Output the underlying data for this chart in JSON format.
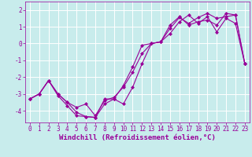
{
  "background_color": "#c8ecec",
  "grid_color": "#ffffff",
  "line_color": "#990099",
  "marker": "D",
  "markersize": 2.0,
  "linewidth": 0.8,
  "xlabel": "Windchill (Refroidissement éolien,°C)",
  "xlabel_fontsize": 6.5,
  "tick_fontsize": 5.5,
  "xlim": [
    -0.5,
    23.5
  ],
  "ylim": [
    -4.7,
    2.5
  ],
  "yticks": [
    -4,
    -3,
    -2,
    -1,
    0,
    1,
    2
  ],
  "xticks": [
    0,
    1,
    2,
    3,
    4,
    5,
    6,
    7,
    8,
    9,
    10,
    11,
    12,
    13,
    14,
    15,
    16,
    17,
    18,
    19,
    20,
    21,
    22,
    23
  ],
  "series1_x": [
    0,
    1,
    2,
    3,
    4,
    5,
    6,
    7,
    8,
    9,
    10,
    11,
    12,
    13,
    14,
    15,
    16,
    17,
    18,
    19,
    20,
    21,
    22,
    23
  ],
  "series1_y": [
    -3.3,
    -3.0,
    -2.2,
    -3.0,
    -3.5,
    -4.1,
    -4.35,
    -4.4,
    -3.3,
    -3.3,
    -3.6,
    -2.6,
    -1.2,
    0.0,
    0.1,
    0.6,
    1.3,
    1.7,
    1.2,
    1.6,
    0.7,
    1.5,
    1.2,
    -1.2
  ],
  "series2_x": [
    0,
    1,
    2,
    3,
    4,
    5,
    6,
    7,
    8,
    9,
    10,
    11,
    12,
    13,
    14,
    15,
    16,
    17,
    18,
    19,
    20,
    21,
    22,
    23
  ],
  "series2_y": [
    -3.3,
    -3.0,
    -2.2,
    -3.1,
    -3.7,
    -4.3,
    -4.35,
    -4.4,
    -3.6,
    -3.3,
    -2.5,
    -1.4,
    -0.1,
    0.0,
    0.1,
    0.9,
    1.55,
    1.2,
    1.55,
    1.8,
    1.5,
    1.6,
    1.7,
    -1.2
  ],
  "series3_x": [
    0,
    1,
    2,
    3,
    4,
    5,
    6,
    7,
    8,
    9,
    10,
    11,
    12,
    13,
    14,
    15,
    16,
    17,
    18,
    19,
    20,
    21,
    22,
    23
  ],
  "series3_y": [
    -3.3,
    -3.0,
    -2.2,
    -3.0,
    -3.5,
    -3.8,
    -3.6,
    -4.3,
    -3.4,
    -3.2,
    -2.6,
    -1.7,
    -0.6,
    0.0,
    0.1,
    1.1,
    1.6,
    1.1,
    1.3,
    1.4,
    1.1,
    1.8,
    1.7,
    -1.2
  ]
}
